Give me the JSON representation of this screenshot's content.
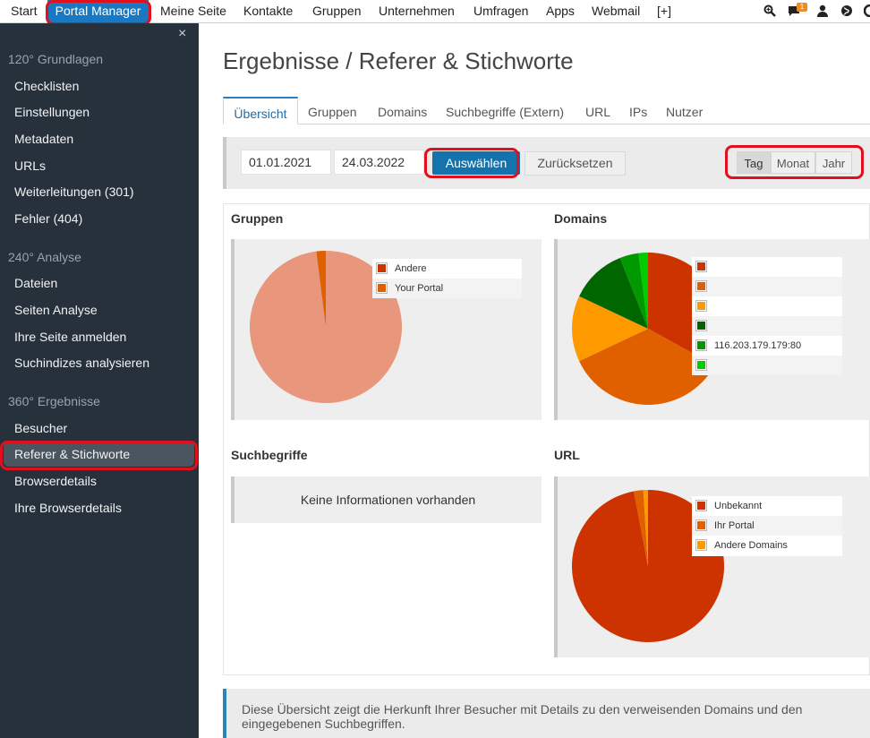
{
  "topnav": {
    "items": [
      "Start",
      "Portal Manager",
      "Meine Seite",
      "Kontakte",
      "Gruppen",
      "Unternehmen",
      "Umfragen",
      "Apps",
      "Webmail",
      "[+]"
    ],
    "active": "Portal Manager",
    "notification_count": "1"
  },
  "sidebar": {
    "close": "×",
    "sections": [
      {
        "title": "120° Grundlagen",
        "items": [
          "Checklisten",
          "Einstellungen",
          "Metadaten",
          "URLs",
          "Weiterleitungen (301)",
          "Fehler (404)"
        ]
      },
      {
        "title": "240° Analyse",
        "items": [
          "Dateien",
          "Seiten Analyse",
          "Ihre Seite anmelden",
          "Suchindizes analysieren"
        ]
      },
      {
        "title": "360° Ergebnisse",
        "items": [
          "Besucher",
          "Referer & Stichworte",
          "Browserdetails",
          "Ihre Browserdetails"
        ]
      }
    ],
    "active_item": "Referer & Stichworte"
  },
  "page": {
    "title": "Ergebnisse / Referer & Stichworte",
    "tabs": [
      "Übersicht",
      "Gruppen",
      "Domains",
      "Suchbegriffe (Extern)",
      "URL",
      "IPs",
      "Nutzer"
    ],
    "active_tab": "Übersicht"
  },
  "filter": {
    "date_from": "01.01.2021",
    "date_to": "24.03.2022",
    "select_button": "Auswählen",
    "reset_button": "Zurücksetzen",
    "period_options": [
      "Tag",
      "Monat",
      "Jahr"
    ],
    "period_selected": "Tag"
  },
  "panels": {
    "gruppen": {
      "title": "Gruppen",
      "legend": [
        {
          "label": "Andere",
          "color": "#cc3300"
        },
        {
          "label": "Your Portal",
          "color": "#e06000"
        }
      ],
      "chart_data": {
        "type": "pie",
        "slices": [
          {
            "label": "Andere",
            "value": 98,
            "color": "#e8967c"
          },
          {
            "label": "Your Portal",
            "value": 2,
            "color": "#e06000"
          }
        ]
      }
    },
    "domains": {
      "title": "Domains",
      "legend": [
        {
          "label": "",
          "color": "#cc3300"
        },
        {
          "label": "",
          "color": "#e06000"
        },
        {
          "label": "",
          "color": "#ff9900"
        },
        {
          "label": "",
          "color": "#006600"
        },
        {
          "label": "116.203.179.179:80",
          "color": "#009900"
        },
        {
          "label": "",
          "color": "#00cc00"
        }
      ],
      "chart_data": {
        "type": "pie",
        "slices": [
          {
            "value": 33,
            "color": "#cc3300"
          },
          {
            "value": 35,
            "color": "#e06000"
          },
          {
            "value": 14,
            "color": "#ff9900"
          },
          {
            "value": 12,
            "color": "#006600"
          },
          {
            "value": 4,
            "color": "#009900"
          },
          {
            "value": 2,
            "color": "#00cc00"
          }
        ]
      }
    },
    "suchbegriffe": {
      "title": "Suchbegriffe",
      "empty_text": "Keine Informationen vorhanden"
    },
    "url": {
      "title": "URL",
      "legend": [
        {
          "label": "Unbekannt",
          "color": "#cc3300"
        },
        {
          "label": "Ihr Portal",
          "color": "#e06000"
        },
        {
          "label": "Andere Domains",
          "color": "#ff9900"
        }
      ],
      "chart_data": {
        "type": "pie",
        "slices": [
          {
            "label": "Unbekannt",
            "value": 97,
            "color": "#cc3300"
          },
          {
            "label": "Ihr Portal",
            "value": 2,
            "color": "#e06000"
          },
          {
            "label": "Andere Domains",
            "value": 1,
            "color": "#ff9900"
          }
        ]
      }
    }
  },
  "info": {
    "text": "Diese Übersicht zeigt die Herkunft Ihrer Besucher mit Details zu den verweisenden Domains und den eingegebenen Suchbegriffen."
  }
}
